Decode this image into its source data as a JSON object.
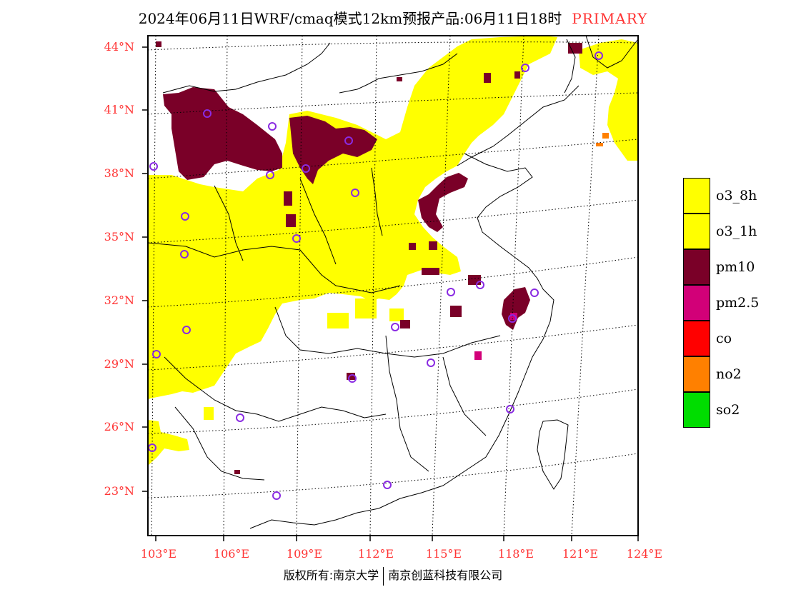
{
  "title": {
    "main": "2024年06月11日WRF/cmaq模式12km预报产品:06月11日18时",
    "mode": "PRIMARY"
  },
  "axes": {
    "lat_labels": [
      "44°N",
      "41°N",
      "38°N",
      "35°N",
      "32°N",
      "29°N",
      "26°N",
      "23°N"
    ],
    "lon_labels": [
      "103°E",
      "106°E",
      "109°E",
      "112°E",
      "115°E",
      "118°E",
      "121°E",
      "124°E"
    ]
  },
  "legend": [
    {
      "label": "o3_8h",
      "color": "#ffff00"
    },
    {
      "label": "o3_1h",
      "color": "#ffff00"
    },
    {
      "label": "pm10",
      "color": "#7a0028"
    },
    {
      "label": "pm2.5",
      "color": "#d20078"
    },
    {
      "label": "co",
      "color": "#ff0000"
    },
    {
      "label": "no2",
      "color": "#ff8000"
    },
    {
      "label": "so2",
      "color": "#00dd00"
    }
  ],
  "footer": {
    "left": "版权所有:南京大学",
    "right": "南京创蓝科技有限公司"
  },
  "colors": {
    "o3": "#ffff00",
    "pm10": "#7a0028",
    "pm25": "#d20078",
    "no2": "#ff8000",
    "station": "#8a2be2",
    "label": "#ff3333"
  }
}
